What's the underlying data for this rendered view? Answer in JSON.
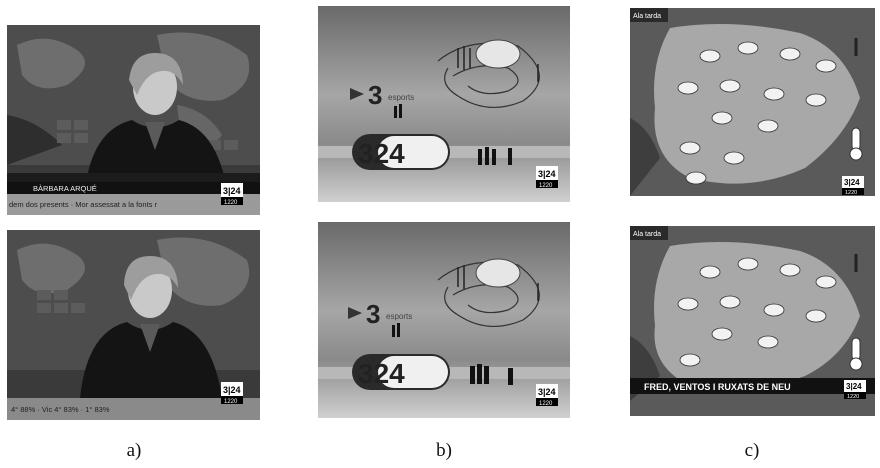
{
  "panels": [
    {
      "caption": "a)",
      "frames": [
        {
          "name_bar": "BÀRBARA ARQUÉ",
          "ticker": "dem dos presents · Mor assessat a la fonts r",
          "logo": "3|24",
          "clock": "1220"
        },
        {
          "ticker": "4° 88% · Vic 4° 83% · 1° 83%",
          "logo": "3|24",
          "clock": "1220"
        }
      ]
    },
    {
      "caption": "b)",
      "frames": [
        {
          "channel_sub": "esports",
          "big_logo": "324",
          "logo": "3|24",
          "clock": "1220"
        },
        {
          "channel_sub": "esports",
          "big_logo": "324",
          "logo": "3|24",
          "clock": "1220"
        }
      ]
    },
    {
      "caption": "c)",
      "frames": [
        {
          "region": "Ala tarda",
          "logo": "3|24",
          "clock": "1220"
        },
        {
          "region": "Ala tarda",
          "headline": "FRED, VENTOS I RUXATS DE NEU",
          "logo": "3|24",
          "clock": "1220"
        }
      ]
    }
  ],
  "colors": {
    "news_bg_dark": "#2a2a2a",
    "studio_bg": "#8c8c8c",
    "map_land": "#a8a8a8",
    "map_sea": "#5a5a5a"
  }
}
